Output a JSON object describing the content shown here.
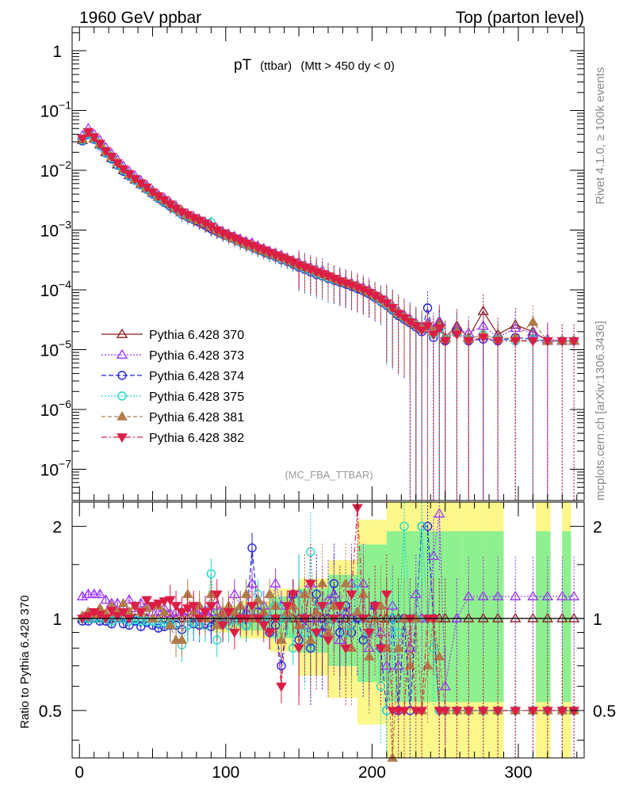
{
  "header": {
    "left": "1960 GeV ppbar",
    "right": "Top (parton level)"
  },
  "side_labels": {
    "rivet": "Rivet 4.1.0, ≥ 100k events",
    "mcplots": "mcplots.cern.ch [arXiv:1306.3436]"
  },
  "chart_data": {
    "type": "scatter",
    "title_main": "pT",
    "title_sub": "(ttbar)",
    "title_cut": "(Mtt > 450 dy < 0)",
    "analysis": "(MC_FBA_TTBAR)",
    "ratio_ylabel": "Ratio to Pythia 6.428 370",
    "xlabel": "",
    "xlim": [
      -5,
      345
    ],
    "ylim": [
      3e-08,
      2.5
    ],
    "ylog": true,
    "ratio_ylim": [
      0.35,
      2.4
    ],
    "ratio_ylog": true,
    "x_ticks": [
      0,
      100,
      200,
      300
    ],
    "y_ticks": [
      {
        "value": 1,
        "base": "1",
        "exp": ""
      },
      {
        "value": 0.1,
        "base": "10",
        "exp": "−1"
      },
      {
        "value": 0.01,
        "base": "10",
        "exp": "−2"
      },
      {
        "value": 0.001,
        "base": "10",
        "exp": "−3"
      },
      {
        "value": 0.0001,
        "base": "10",
        "exp": "−4"
      },
      {
        "value": 1e-05,
        "base": "10",
        "exp": "−5"
      },
      {
        "value": 1e-06,
        "base": "10",
        "exp": "−6"
      },
      {
        "value": 1e-07,
        "base": "10",
        "exp": "−7"
      }
    ],
    "ratio_ticks": [
      0.5,
      1,
      2
    ],
    "ratio_tick_labels": [
      "0.5",
      "1",
      "2"
    ],
    "x": [
      2,
      6,
      10,
      14,
      18,
      22,
      26,
      30,
      34,
      38,
      42,
      46,
      50,
      54,
      58,
      62,
      66,
      70,
      74,
      78,
      82,
      86,
      90,
      94,
      98,
      102,
      106,
      110,
      114,
      118,
      122,
      126,
      130,
      134,
      138,
      142,
      146,
      150,
      154,
      158,
      162,
      166,
      170,
      174,
      178,
      182,
      186,
      190,
      194,
      198,
      202,
      206,
      210,
      214,
      218,
      222,
      226,
      230,
      234,
      238,
      242,
      246,
      250,
      258,
      266,
      276,
      286,
      298,
      310,
      320,
      330,
      338
    ],
    "series": [
      {
        "name": "Pythia 6.428 370",
        "color": "#8b1a1a",
        "marker": "triangle-up-open",
        "dash": "",
        "values": [
          0.032,
          0.042,
          0.034,
          0.027,
          0.02,
          0.016,
          0.0125,
          0.01,
          0.0083,
          0.007,
          0.0059,
          0.005,
          0.0042,
          0.0036,
          0.0031,
          0.0027,
          0.0023,
          0.002,
          0.00175,
          0.00155,
          0.0014,
          0.00125,
          0.0011,
          0.00098,
          0.00088,
          0.0008,
          0.00072,
          0.00065,
          0.00059,
          0.00054,
          0.00049,
          0.00045,
          0.00041,
          0.00038,
          0.00035,
          0.00032,
          0.00029,
          0.00026,
          0.00024,
          0.00022,
          0.0002,
          0.000185,
          0.00017,
          0.000155,
          0.00014,
          0.00013,
          0.00012,
          0.00011,
          0.0001,
          9e-05,
          8e-05,
          7e-05,
          6e-05,
          5e-05,
          4e-05,
          3.5e-05,
          3e-05,
          2.6e-05,
          2.2e-05,
          2.6e-05,
          2e-05,
          2.8e-05,
          1.6e-05,
          2.5e-05,
          1.6e-05,
          4.4e-05,
          1.8e-05,
          2.6e-05,
          2e-05,
          1.4e-05,
          1.4e-05,
          1.4e-05
        ],
        "ratio": [
          1.0,
          1.0,
          1.0,
          1.0,
          1.0,
          1.0,
          1.0,
          1.0,
          1.0,
          1.0,
          1.0,
          1.0,
          1.0,
          1.0,
          1.0,
          1.0,
          1.0,
          1.0,
          1.0,
          1.0,
          1.0,
          1.0,
          1.0,
          1.0,
          1.0,
          1.0,
          1.0,
          1.0,
          1.0,
          1.0,
          1.0,
          1.0,
          1.0,
          1.0,
          1.0,
          1.0,
          1.0,
          1.0,
          1.0,
          1.0,
          1.0,
          1.0,
          1.0,
          1.0,
          1.0,
          1.0,
          1.0,
          1.0,
          1.0,
          1.0,
          1.0,
          1.0,
          1.0,
          1.0,
          1.0,
          1.0,
          1.0,
          1.0,
          1.0,
          1.0,
          1.0,
          1.0,
          1.0,
          1.0,
          1.0,
          1.0,
          1.0,
          1.0,
          1.0,
          1.0,
          1.0,
          1.0
        ]
      },
      {
        "name": "Pythia 6.428 373",
        "color": "#9933ff",
        "marker": "triangle-up-open",
        "dash": "2,2",
        "values": [
          0.038,
          0.05,
          0.04,
          0.032,
          0.024,
          0.019,
          0.015,
          0.0118,
          0.0096,
          0.008,
          0.0067,
          0.0056,
          0.0046,
          0.0039,
          0.0034,
          0.0029,
          0.0025,
          0.0021,
          0.00185,
          0.00165,
          0.0015,
          0.00135,
          0.0012,
          0.00105,
          0.00094,
          0.00085,
          0.00078,
          0.0007,
          0.00064,
          0.00061,
          0.00054,
          0.00049,
          0.00044,
          0.00041,
          0.00038,
          0.00034,
          0.00031,
          0.00029,
          0.00026,
          0.00024,
          0.00022,
          0.00021,
          0.00018,
          0.00016,
          0.00015,
          0.00014,
          0.00013,
          0.00012,
          0.00011,
          0.0001,
          8.6e-05,
          7.5e-05,
          6.5e-05,
          5.4e-05,
          4.4e-05,
          3.8e-05,
          3.3e-05,
          2.8e-05,
          2.4e-05,
          2.8e-05,
          2.2e-05,
          3e-05,
          1.5e-05,
          2.3e-05,
          1.9e-05,
          2.5e-05,
          1.6e-05,
          2.3e-05,
          1.9e-05,
          1.5e-05,
          1.4e-05,
          1.4e-05
        ],
        "ratio": [
          1.18,
          1.2,
          1.2,
          1.2,
          1.15,
          1.12,
          1.12,
          1.1,
          1.15,
          1.08,
          1.12,
          1.1,
          1.05,
          1.05,
          1.08,
          1.04,
          1.05,
          1.05,
          1.06,
          1.08,
          1.07,
          1.06,
          1.05,
          1.1,
          1.05,
          1.0,
          1.2,
          1.1,
          1.05,
          1.3,
          1.15,
          1.1,
          1.0,
          1.3,
          1.1,
          1.05,
          1.2,
          1.2,
          0.95,
          1.3,
          1.0,
          0.9,
          1.15,
          1.2,
          0.85,
          1.05,
          1.3,
          1.0,
          1.3,
          0.8,
          1.1,
          0.9,
          0.7,
          1.1,
          0.7,
          1.0,
          0.8,
          1.2,
          1.0,
          1.0,
          1.6,
          2.2,
          0.6,
          1.0,
          1.18,
          1.18,
          1.18,
          1.18,
          1.18,
          1.18,
          1.18,
          1.18
        ]
      },
      {
        "name": "Pythia 6.428 374",
        "color": "#2222dd",
        "marker": "circle-open",
        "dash": "6,3",
        "values": [
          0.031,
          0.04,
          0.033,
          0.026,
          0.0195,
          0.0155,
          0.0122,
          0.0096,
          0.008,
          0.0068,
          0.0057,
          0.0048,
          0.004,
          0.0034,
          0.0029,
          0.0025,
          0.0022,
          0.00185,
          0.00165,
          0.0015,
          0.00135,
          0.0012,
          0.00105,
          0.00095,
          0.00085,
          0.00077,
          0.0007,
          0.00063,
          0.00057,
          0.00052,
          0.00047,
          0.00043,
          0.00039,
          0.00036,
          0.00032,
          0.0003,
          0.00027,
          0.00024,
          0.00022,
          0.0002,
          0.00018,
          0.00017,
          0.000155,
          0.000145,
          0.000135,
          0.000125,
          0.000115,
          0.000105,
          9.6e-05,
          8.6e-05,
          7.4e-05,
          6.4e-05,
          5.5e-05,
          4.6e-05,
          3.7e-05,
          3.2e-05,
          2.8e-05,
          2.4e-05,
          2e-05,
          5e-05,
          1.6e-05,
          2.4e-05,
          1.4e-05,
          2e-05,
          1.4e-05,
          1.5e-05,
          1.4e-05,
          1.6e-05,
          1.5e-05,
          1.4e-05,
          1.4e-05,
          1.4e-05
        ],
        "ratio": [
          0.98,
          0.98,
          1.0,
          0.98,
          0.98,
          0.96,
          1.0,
          0.96,
          0.95,
          0.98,
          0.94,
          0.97,
          0.95,
          0.93,
          0.94,
          0.95,
          0.95,
          0.92,
          0.95,
          0.96,
          0.95,
          0.96,
          0.94,
          0.97,
          0.96,
          0.95,
          1.0,
          1.05,
          0.95,
          1.7,
          1.05,
          1.0,
          0.9,
          0.95,
          0.7,
          1.0,
          1.2,
          0.85,
          1.0,
          0.8,
          1.2,
          0.9,
          1.0,
          1.3,
          0.9,
          1.1,
          0.9,
          1.0,
          0.85,
          0.9,
          1.1,
          0.8,
          0.5,
          1.0,
          0.5,
          1.0,
          0.5,
          1.0,
          2.0,
          2.0,
          1.0,
          0.5,
          0.5,
          0.5,
          0.5,
          0.5,
          0.5,
          0.5,
          0.5,
          0.5,
          0.5,
          0.5
        ]
      },
      {
        "name": "Pythia 6.428 375",
        "color": "#22d8c8",
        "marker": "circle-open",
        "dash": "2,2",
        "values": [
          0.032,
          0.041,
          0.034,
          0.0265,
          0.02,
          0.016,
          0.0125,
          0.01,
          0.0082,
          0.0069,
          0.0058,
          0.0049,
          0.0041,
          0.0035,
          0.003,
          0.0026,
          0.0022,
          0.0019,
          0.0017,
          0.00155,
          0.00145,
          0.0013,
          0.00135,
          0.001,
          0.00088,
          0.00078,
          0.00071,
          0.00064,
          0.00058,
          0.00053,
          0.00048,
          0.00044,
          0.0004,
          0.00037,
          0.00033,
          0.00031,
          0.00028,
          0.00025,
          0.00023,
          0.00021,
          0.00019,
          0.000175,
          0.00016,
          0.00015,
          0.00014,
          0.00013,
          0.00012,
          0.00011,
          0.0001,
          9e-05,
          7.8e-05,
          6.6e-05,
          5.7e-05,
          4.8e-05,
          3.9e-05,
          3.4e-05,
          3e-05,
          2.6e-05,
          2.2e-05,
          2.5e-05,
          1.8e-05,
          2.2e-05,
          1.5e-05,
          1.9e-05,
          1.5e-05,
          1.8e-05,
          1.5e-05,
          1.4e-05,
          1.5e-05,
          1.4e-05,
          1.4e-05,
          1.4e-05
        ],
        "ratio": [
          1.0,
          1.0,
          1.0,
          1.0,
          1.0,
          0.98,
          1.0,
          1.0,
          0.98,
          0.99,
          0.98,
          0.98,
          0.98,
          0.97,
          0.97,
          0.96,
          0.96,
          0.82,
          0.95,
          0.97,
          0.96,
          0.95,
          1.4,
          0.85,
          0.96,
          0.95,
          1.0,
          0.98,
          0.95,
          1.0,
          1.2,
          1.0,
          1.0,
          1.1,
          1.0,
          1.0,
          0.8,
          1.2,
          0.9,
          1.65,
          0.9,
          1.1,
          0.95,
          1.0,
          1.1,
          0.9,
          0.95,
          1.3,
          1.0,
          0.9,
          1.0,
          0.6,
          0.5,
          1.0,
          0.9,
          2.0,
          1.0,
          1.0,
          2.0,
          1.0,
          0.8,
          0.5,
          0.5,
          0.5,
          0.5,
          0.5,
          0.5,
          0.5,
          0.5,
          0.5,
          0.5,
          0.5
        ]
      },
      {
        "name": "Pythia 6.428 381",
        "color": "#b07d4a",
        "marker": "triangle-up-filled",
        "dash": "5,3",
        "values": [
          0.033,
          0.043,
          0.035,
          0.028,
          0.021,
          0.017,
          0.0135,
          0.0105,
          0.0086,
          0.0072,
          0.0061,
          0.0052,
          0.0044,
          0.0037,
          0.0032,
          0.0028,
          0.0024,
          0.0021,
          0.0018,
          0.0016,
          0.00145,
          0.0013,
          0.00115,
          0.001,
          0.0009,
          0.00081,
          0.00073,
          0.00066,
          0.0006,
          0.00055,
          0.0005,
          0.00046,
          0.00042,
          0.00039,
          0.00036,
          0.00033,
          0.0003,
          0.00027,
          0.00025,
          0.00023,
          0.00021,
          0.00019,
          0.000175,
          0.00016,
          0.000145,
          0.000135,
          0.000125,
          0.000115,
          0.000105,
          9.4e-05,
          8.4e-05,
          7.3e-05,
          6.2e-05,
          5.2e-05,
          4.2e-05,
          3.6e-05,
          3.1e-05,
          2.7e-05,
          2.3e-05,
          2.6e-05,
          2e-05,
          2.6e-05,
          1.5e-05,
          2.1e-05,
          1.5e-05,
          1.8e-05,
          1.5e-05,
          1.6e-05,
          2.9e-05,
          1.4e-05,
          1.4e-05,
          1.4e-05
        ],
        "ratio": [
          1.02,
          1.05,
          1.03,
          1.08,
          1.04,
          1.1,
          1.05,
          1.12,
          1.05,
          1.1,
          1.05,
          1.08,
          1.0,
          1.1,
          1.05,
          0.95,
          0.85,
          0.85,
          1.2,
          1.05,
          1.1,
          1.0,
          1.2,
          0.95,
          1.05,
          1.1,
          1.05,
          1.1,
          1.2,
          1.0,
          1.15,
          1.05,
          1.2,
          1.1,
          0.85,
          1.05,
          1.1,
          0.95,
          1.2,
          0.85,
          1.05,
          1.3,
          0.9,
          1.1,
          1.1,
          1.3,
          0.8,
          1.05,
          1.2,
          0.75,
          1.0,
          1.1,
          0.8,
          0.35,
          0.8,
          1.0,
          0.7,
          1.0,
          0.5,
          0.7,
          1.0,
          0.75,
          0.5,
          0.5,
          0.5,
          0.5,
          0.5,
          0.5,
          0.5,
          0.5,
          0.5,
          0.5
        ]
      },
      {
        "name": "Pythia 6.428 382",
        "color": "#dc1e46",
        "marker": "triangle-down-filled",
        "dash": "7,3,2,3",
        "values": [
          0.034,
          0.044,
          0.036,
          0.028,
          0.021,
          0.017,
          0.0132,
          0.0105,
          0.0087,
          0.0072,
          0.0061,
          0.0052,
          0.0043,
          0.0037,
          0.0032,
          0.0027,
          0.0023,
          0.002,
          0.0018,
          0.0016,
          0.00145,
          0.0013,
          0.00115,
          0.001,
          0.00089,
          0.0008,
          0.00073,
          0.00066,
          0.0006,
          0.00055,
          0.0005,
          0.00046,
          0.00042,
          0.00038,
          0.00035,
          0.00032,
          0.00029,
          0.00026,
          0.00024,
          0.00022,
          0.0002,
          0.000185,
          0.00017,
          0.000155,
          0.00014,
          0.00013,
          0.00012,
          0.00011,
          0.0001,
          9e-05,
          8e-05,
          7e-05,
          6e-05,
          5e-05,
          4e-05,
          3.4e-05,
          2.9e-05,
          2.5e-05,
          2.1e-05,
          2.5e-05,
          1.8e-05,
          2.3e-05,
          1.4e-05,
          1.8e-05,
          1.4e-05,
          1.6e-05,
          1.4e-05,
          1.4e-05,
          1.4e-05,
          1.4e-05,
          1.4e-05,
          1.4e-05
        ],
        "ratio": [
          1.0,
          1.02,
          1.05,
          1.03,
          1.0,
          1.06,
          1.02,
          1.05,
          1.0,
          1.1,
          1.05,
          1.15,
          1.1,
          1.12,
          1.14,
          1.15,
          1.1,
          1.05,
          1.08,
          1.1,
          1.0,
          1.05,
          1.1,
          1.2,
          0.95,
          1.05,
          0.9,
          1.0,
          1.0,
          1.1,
          1.0,
          0.95,
          0.9,
          1.0,
          0.6,
          1.1,
          1.2,
          0.8,
          1.0,
          1.3,
          0.9,
          1.1,
          0.85,
          1.0,
          1.1,
          0.8,
          1.2,
          2.3,
          1.0,
          0.9,
          1.1,
          0.8,
          1.2,
          0.5,
          0.5,
          0.5,
          1.0,
          0.5,
          0.5,
          1.0,
          1.0,
          0.5,
          0.5,
          0.5,
          0.5,
          0.5,
          0.5,
          0.5,
          0.5,
          0.5,
          0.5,
          0.5
        ]
      }
    ],
    "ratio_bands": [
      {
        "x0": 90,
        "x1": 110,
        "lo": 0.9,
        "hi": 1.1
      },
      {
        "x0": 110,
        "x1": 130,
        "lo": 0.86,
        "hi": 1.14
      },
      {
        "x0": 130,
        "x1": 150,
        "lo": 0.78,
        "hi": 1.25
      },
      {
        "x0": 150,
        "x1": 170,
        "lo": 0.65,
        "hi": 1.35
      },
      {
        "x0": 170,
        "x1": 190,
        "lo": 0.55,
        "hi": 1.55
      },
      {
        "x0": 190,
        "x1": 210,
        "lo": 0.45,
        "hi": 2.1
      },
      {
        "x0": 210,
        "x1": 230,
        "lo": 0.35,
        "hi": 2.4
      },
      {
        "x0": 230,
        "x1": 250,
        "lo": 0.35,
        "hi": 2.4
      },
      {
        "x0": 250,
        "x1": 262,
        "lo": 0.35,
        "hi": 2.4
      },
      {
        "x0": 262,
        "x1": 276,
        "lo": 0.35,
        "hi": 2.4
      },
      {
        "x0": 276,
        "x1": 290,
        "lo": 0.35,
        "hi": 2.4
      },
      {
        "x0": 312,
        "x1": 322,
        "lo": 0.35,
        "hi": 2.4
      },
      {
        "x0": 330,
        "x1": 336,
        "lo": 0.35,
        "hi": 2.4
      }
    ]
  }
}
